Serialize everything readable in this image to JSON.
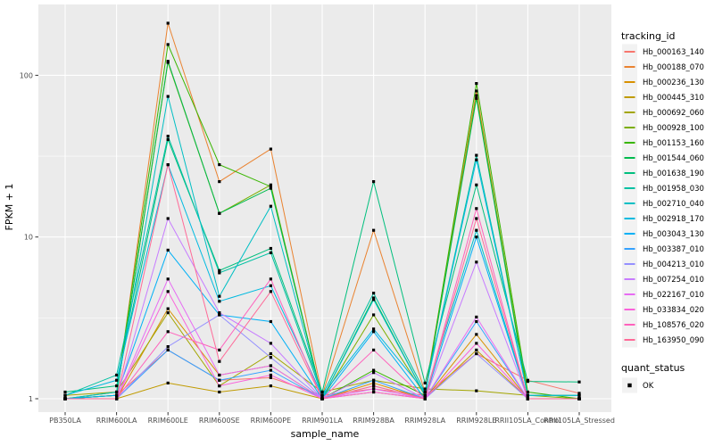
{
  "figure": {
    "background": "#FFFFFF",
    "panel_background": "#EBEBEB",
    "gridline_color": "#FFFFFF",
    "tick_label_color": "#4D4D4D",
    "axis_title_color": "#000000",
    "point_color": "#000000",
    "legend_key_background": "#F2F2F2"
  },
  "chart_data": {
    "type": "line",
    "title": "",
    "xlabel": "sample_name",
    "ylabel": "FPKM + 1",
    "y_scale": "log10",
    "y_ticks": [
      "1",
      "10",
      "100"
    ],
    "y_tick_values": [
      1,
      10,
      100
    ],
    "y_minor_gridlines": [
      3.162,
      31.62
    ],
    "ylim": [
      1,
      260
    ],
    "grid": true,
    "legend_position": "right",
    "legend_title": "tracking_id",
    "point_shape": "square",
    "categories": [
      "PB350LA",
      "RRIM600LA",
      "RRIM600LE",
      "RRIM600SE",
      "RRIM600PE",
      "RRIM901LA",
      "RRIM928BA",
      "RRIM928LA",
      "RRIM928LE",
      "RRII105LA_Control",
      "RRII105LA_Stressed"
    ],
    "series": [
      {
        "name": "Hb_000163_140",
        "color": "#F8766D",
        "values": [
          1.0,
          1.05,
          2.0,
          1.3,
          1.35,
          1.05,
          1.15,
          1.05,
          1.9,
          1.3,
          1.08
        ]
      },
      {
        "name": "Hb_000188_070",
        "color": "#EA8331",
        "values": [
          1.0,
          1.05,
          210,
          22,
          35,
          1.05,
          11,
          1.1,
          80,
          1.0,
          1.0
        ]
      },
      {
        "name": "Hb_000236_130",
        "color": "#D89000",
        "values": [
          1.0,
          1.0,
          3.6,
          1.4,
          1.6,
          1.0,
          1.25,
          1.0,
          2.5,
          1.0,
          1.0
        ]
      },
      {
        "name": "Hb_000445_310",
        "color": "#C09B00",
        "values": [
          1.0,
          1.0,
          1.25,
          1.1,
          1.2,
          1.0,
          1.1,
          1.0,
          2.0,
          1.0,
          1.0
        ]
      },
      {
        "name": "Hb_000692_060",
        "color": "#A3A500",
        "values": [
          1.05,
          1.1,
          3.4,
          1.2,
          1.9,
          1.1,
          1.3,
          1.15,
          1.12,
          1.05,
          1.05
        ]
      },
      {
        "name": "Hb_000928_100",
        "color": "#7CAE00",
        "values": [
          1.0,
          1.05,
          120,
          14,
          21,
          1.0,
          3.3,
          1.05,
          75,
          1.05,
          1.0
        ]
      },
      {
        "name": "Hb_001153_160",
        "color": "#39B600",
        "values": [
          1.0,
          1.1,
          155,
          28,
          20.5,
          1.0,
          1.5,
          1.05,
          89,
          1.1,
          1.0
        ]
      },
      {
        "name": "Hb_001544_060",
        "color": "#00BB4E",
        "values": [
          1.0,
          1.05,
          122,
          14,
          20,
          1.0,
          4.2,
          1.05,
          72,
          1.0,
          1.0
        ]
      },
      {
        "name": "Hb_001638_190",
        "color": "#00BF7D",
        "values": [
          1.1,
          1.2,
          40,
          6.2,
          8.5,
          1.1,
          22,
          1.25,
          21,
          1.28,
          1.27
        ]
      },
      {
        "name": "Hb_001958_030",
        "color": "#00C1A3",
        "values": [
          1.05,
          1.4,
          42,
          6.0,
          8.0,
          1.05,
          4.5,
          1.1,
          32,
          1.05,
          1.05
        ]
      },
      {
        "name": "Hb_002710_040",
        "color": "#00BFC4",
        "values": [
          1.0,
          1.1,
          74,
          4.3,
          15.5,
          1.0,
          4.1,
          1.05,
          11,
          1.0,
          1.0
        ]
      },
      {
        "name": "Hb_002918_170",
        "color": "#00BAE0",
        "values": [
          1.05,
          1.3,
          28,
          4.0,
          5.0,
          1.05,
          2.7,
          1.1,
          30,
          1.05,
          1.05
        ]
      },
      {
        "name": "Hb_003043_130",
        "color": "#00B0F6",
        "values": [
          1.0,
          1.05,
          8.3,
          3.3,
          3.0,
          1.0,
          2.6,
          1.0,
          10,
          1.0,
          1.0
        ]
      },
      {
        "name": "Hb_003387_010",
        "color": "#35A2FF",
        "values": [
          1.0,
          1.0,
          2.0,
          1.3,
          1.5,
          1.0,
          1.3,
          1.0,
          3.0,
          1.0,
          1.0
        ]
      },
      {
        "name": "Hb_004213_010",
        "color": "#9590FF",
        "values": [
          1.0,
          1.0,
          2.1,
          3.3,
          1.8,
          1.0,
          1.2,
          1.0,
          1.9,
          1.0,
          1.0
        ]
      },
      {
        "name": "Hb_007254_010",
        "color": "#C77CFF",
        "values": [
          1.0,
          1.0,
          13,
          3.4,
          2.2,
          1.0,
          1.45,
          1.0,
          7.0,
          1.0,
          1.0
        ]
      },
      {
        "name": "Hb_022167_010",
        "color": "#E76BF3",
        "values": [
          1.0,
          1.0,
          5.5,
          1.4,
          1.6,
          1.0,
          1.15,
          1.0,
          3.2,
          1.0,
          1.0
        ]
      },
      {
        "name": "Hb_033834_020",
        "color": "#FA62DB",
        "values": [
          1.0,
          1.0,
          4.6,
          1.2,
          1.4,
          1.0,
          1.1,
          1.0,
          2.2,
          1.0,
          1.0
        ]
      },
      {
        "name": "Hb_108576_020",
        "color": "#FF62BC",
        "values": [
          1.0,
          1.0,
          2.6,
          2.0,
          5.5,
          1.0,
          2.0,
          1.0,
          15,
          1.0,
          1.0
        ]
      },
      {
        "name": "Hb_163950_090",
        "color": "#FF6A98",
        "values": [
          1.0,
          1.0,
          28,
          1.7,
          4.6,
          1.0,
          1.2,
          1.0,
          13,
          1.0,
          1.0
        ]
      }
    ],
    "quant_legend": {
      "title": "quant_status",
      "items": [
        "OK"
      ],
      "point_shape": "square",
      "point_color": "#000000"
    }
  }
}
